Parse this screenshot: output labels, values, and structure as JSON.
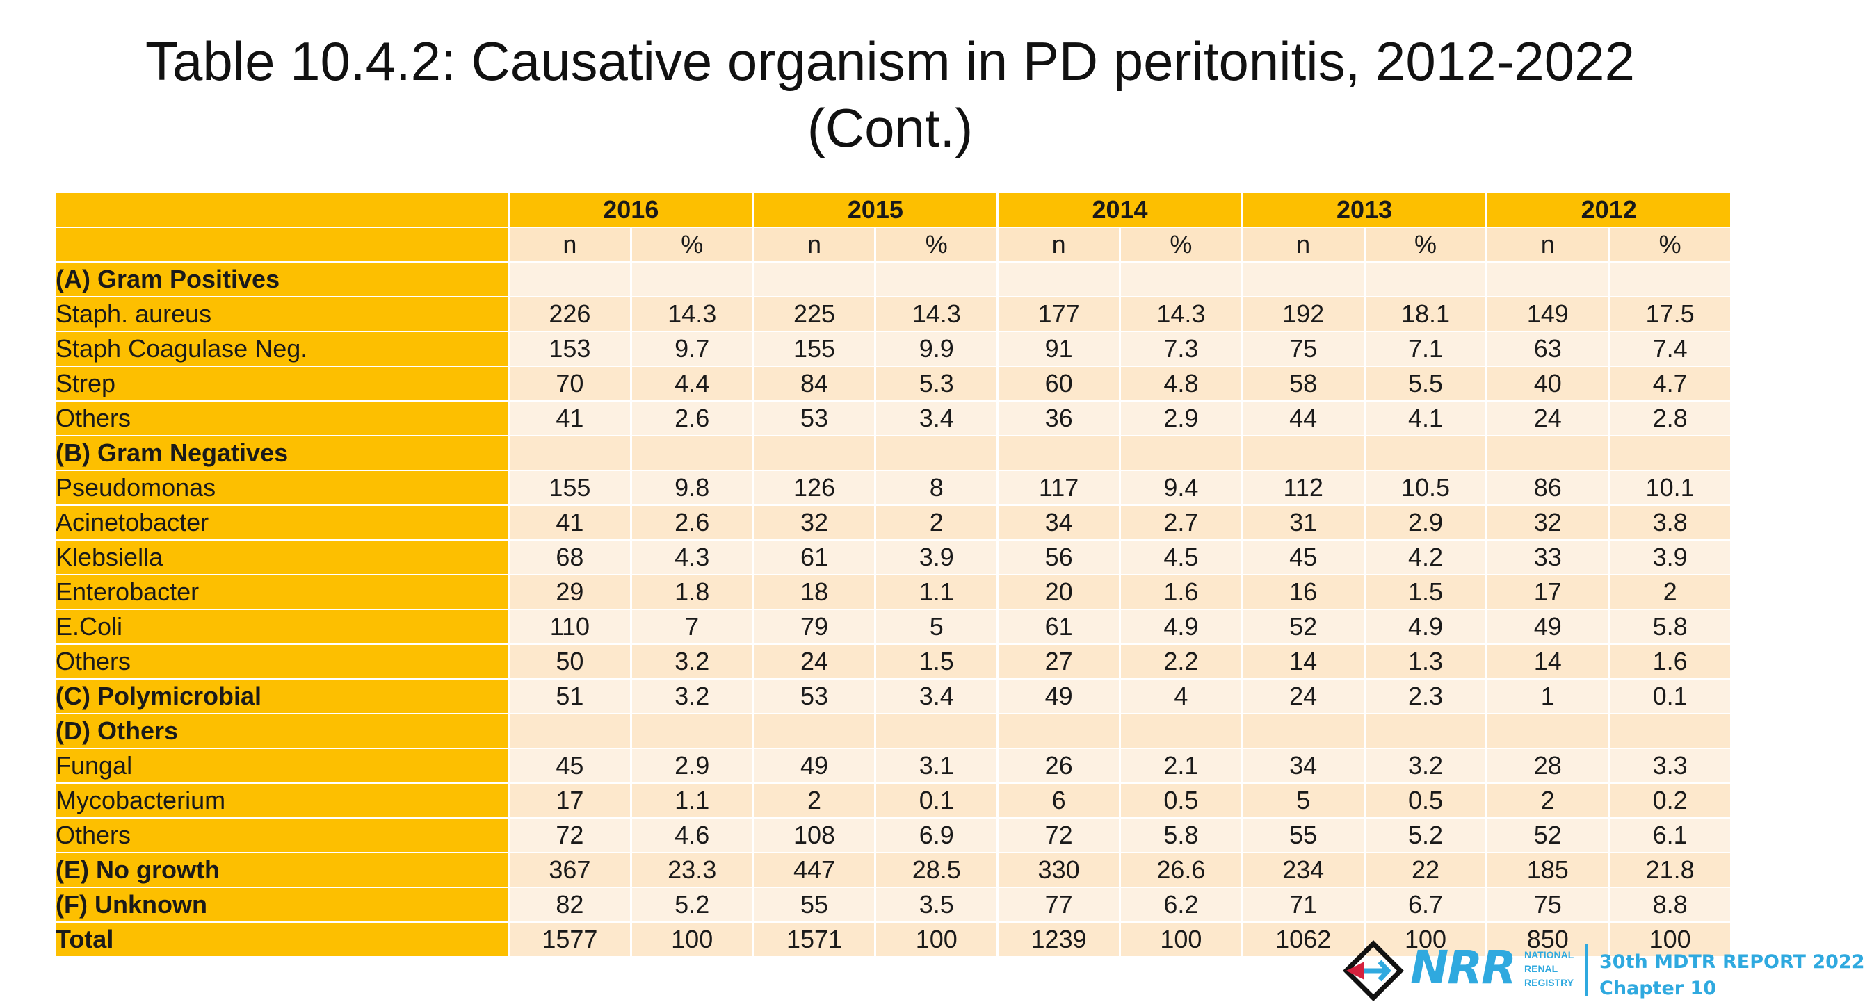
{
  "title_line1": "Table 10.4.2: Causative organism in PD peritonitis, 2012-2022",
  "title_line2": "(Cont.)",
  "years": [
    "2016",
    "2015",
    "2014",
    "2013",
    "2012"
  ],
  "sub_headers": [
    "n",
    "%"
  ],
  "rows": [
    {
      "label": "(A) Gram Positives",
      "bold": true,
      "values": []
    },
    {
      "label": "Staph. aureus",
      "bold": false,
      "values": [
        "226",
        "14.3",
        "225",
        "14.3",
        "177",
        "14.3",
        "192",
        "18.1",
        "149",
        "17.5"
      ]
    },
    {
      "label": "Staph Coagulase Neg.",
      "bold": false,
      "values": [
        "153",
        "9.7",
        "155",
        "9.9",
        "91",
        "7.3",
        "75",
        "7.1",
        "63",
        "7.4"
      ]
    },
    {
      "label": "Strep",
      "bold": false,
      "values": [
        "70",
        "4.4",
        "84",
        "5.3",
        "60",
        "4.8",
        "58",
        "5.5",
        "40",
        "4.7"
      ]
    },
    {
      "label": "Others",
      "bold": false,
      "values": [
        "41",
        "2.6",
        "53",
        "3.4",
        "36",
        "2.9",
        "44",
        "4.1",
        "24",
        "2.8"
      ]
    },
    {
      "label": "(B) Gram Negatives",
      "bold": true,
      "values": []
    },
    {
      "label": "Pseudomonas",
      "bold": false,
      "values": [
        "155",
        "9.8",
        "126",
        "8",
        "117",
        "9.4",
        "112",
        "10.5",
        "86",
        "10.1"
      ]
    },
    {
      "label": "Acinetobacter",
      "bold": false,
      "values": [
        "41",
        "2.6",
        "32",
        "2",
        "34",
        "2.7",
        "31",
        "2.9",
        "32",
        "3.8"
      ]
    },
    {
      "label": "Klebsiella",
      "bold": false,
      "values": [
        "68",
        "4.3",
        "61",
        "3.9",
        "56",
        "4.5",
        "45",
        "4.2",
        "33",
        "3.9"
      ]
    },
    {
      "label": "Enterobacter",
      "bold": false,
      "values": [
        "29",
        "1.8",
        "18",
        "1.1",
        "20",
        "1.6",
        "16",
        "1.5",
        "17",
        "2"
      ]
    },
    {
      "label": "E.Coli",
      "bold": false,
      "values": [
        "110",
        "7",
        "79",
        "5",
        "61",
        "4.9",
        "52",
        "4.9",
        "49",
        "5.8"
      ]
    },
    {
      "label": "Others",
      "bold": false,
      "values": [
        "50",
        "3.2",
        "24",
        "1.5",
        "27",
        "2.2",
        "14",
        "1.3",
        "14",
        "1.6"
      ]
    },
    {
      "label": "(C) Polymicrobial",
      "bold": true,
      "values": [
        "51",
        "3.2",
        "53",
        "3.4",
        "49",
        "4",
        "24",
        "2.3",
        "1",
        "0.1"
      ]
    },
    {
      "label": "(D) Others",
      "bold": true,
      "values": []
    },
    {
      "label": "Fungal",
      "bold": false,
      "values": [
        "45",
        "2.9",
        "49",
        "3.1",
        "26",
        "2.1",
        "34",
        "3.2",
        "28",
        "3.3"
      ]
    },
    {
      "label": "Mycobacterium",
      "bold": false,
      "values": [
        "17",
        "1.1",
        "2",
        "0.1",
        "6",
        "0.5",
        "5",
        "0.5",
        "2",
        "0.2"
      ]
    },
    {
      "label": "Others",
      "bold": false,
      "values": [
        "72",
        "4.6",
        "108",
        "6.9",
        "72",
        "5.8",
        "55",
        "5.2",
        "52",
        "6.1"
      ]
    },
    {
      "label": "(E) No growth",
      "bold": true,
      "values": [
        "367",
        "23.3",
        "447",
        "28.5",
        "330",
        "26.6",
        "234",
        "22",
        "185",
        "21.8"
      ]
    },
    {
      "label": "(F) Unknown",
      "bold": true,
      "values": [
        "82",
        "5.2",
        "55",
        "3.5",
        "77",
        "6.2",
        "71",
        "6.7",
        "75",
        "8.8"
      ]
    },
    {
      "label": "Total",
      "bold": true,
      "values": [
        "1577",
        "100",
        "1571",
        "100",
        "1239",
        "100",
        "1062",
        "100",
        "850",
        "100"
      ]
    }
  ],
  "footer": {
    "logo_letters": "NRR",
    "logo_sub": [
      "NATIONAL",
      "RENAL",
      "REGISTRY"
    ],
    "report_line1": "30th MDTR REPORT 2022",
    "report_line2": "Chapter 10"
  },
  "colors": {
    "header": "#fdbf00",
    "row_a": "#fde8cc",
    "row_b": "#fdf1e2",
    "brand": "#2fa9df"
  }
}
